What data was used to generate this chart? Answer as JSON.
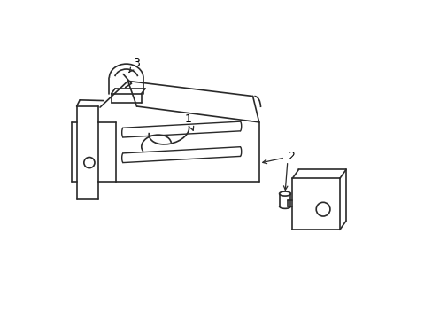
{
  "background_color": "#ffffff",
  "line_color": "#2a2a2a",
  "line_width": 1.2,
  "label_fontsize": 9
}
